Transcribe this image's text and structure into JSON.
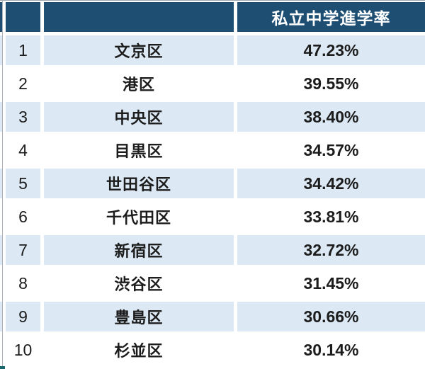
{
  "table": {
    "header": {
      "rank_label": "",
      "ward_label": "",
      "rate_label": "私立中学進学率"
    },
    "rows": [
      {
        "rank": "1",
        "area": "文京区",
        "rate": "47.23%"
      },
      {
        "rank": "2",
        "area": "港区",
        "rate": "39.55%"
      },
      {
        "rank": "3",
        "area": "中央区",
        "rate": "38.40%"
      },
      {
        "rank": "4",
        "area": "目黒区",
        "rate": "34.57%"
      },
      {
        "rank": "5",
        "area": "世田谷区",
        "rate": "34.42%"
      },
      {
        "rank": "6",
        "area": "千代田区",
        "rate": "33.81%"
      },
      {
        "rank": "7",
        "area": "新宿区",
        "rate": "32.72%"
      },
      {
        "rank": "8",
        "area": "渋谷区",
        "rate": "31.45%"
      },
      {
        "rank": "9",
        "area": "豊島区",
        "rate": "30.66%"
      },
      {
        "rank": "10",
        "area": "杉並区",
        "rate": "30.14%"
      }
    ]
  },
  "colors": {
    "header_bg": "#1f4e73",
    "header_text": "#ffffff",
    "row_alt_bg": "#dce9f5",
    "row_bg": "#ffffff",
    "body_text": "#1c1c1c",
    "fragment_teal": "#17666e"
  },
  "chart_data": {
    "type": "table",
    "title": "",
    "columns": [
      "",
      "",
      "私立中学進学率"
    ],
    "categories": [
      "文京区",
      "港区",
      "中央区",
      "目黒区",
      "世田谷区",
      "千代田区",
      "新宿区",
      "渋谷区",
      "豊島区",
      "杉並区"
    ],
    "series": [
      {
        "name": "私立中学進学率",
        "values": [
          47.23,
          39.55,
          38.4,
          34.57,
          34.42,
          33.81,
          32.72,
          31.45,
          30.66,
          30.14
        ]
      }
    ],
    "rows": [
      [
        "1",
        "文京区",
        "47.23%"
      ],
      [
        "2",
        "港区",
        "39.55%"
      ],
      [
        "3",
        "中央区",
        "38.40%"
      ],
      [
        "4",
        "目黒区",
        "34.57%"
      ],
      [
        "5",
        "世田谷区",
        "34.42%"
      ],
      [
        "6",
        "千代田区",
        "33.81%"
      ],
      [
        "7",
        "新宿区",
        "32.72%"
      ],
      [
        "8",
        "渋谷区",
        "31.45%"
      ],
      [
        "9",
        "豊島区",
        "30.66%"
      ],
      [
        "10",
        "杉並区",
        "30.14%"
      ]
    ],
    "layout": {
      "ranked": true,
      "alternating_row_shading": true,
      "header_position": "top"
    }
  }
}
